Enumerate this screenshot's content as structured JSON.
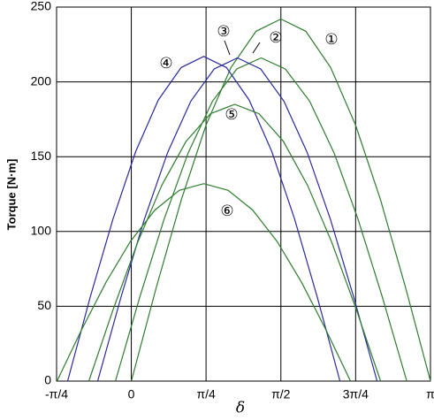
{
  "chart_data": {
    "type": "line",
    "x_label": "δ",
    "y_label": "Torque [N·m]",
    "xlim": [
      -0.785,
      3.142
    ],
    "ylim": [
      0,
      250
    ],
    "xticks": [
      {
        "value": -0.785,
        "label": "-π/4"
      },
      0,
      {
        "value": 0.785,
        "label": "π/4"
      },
      {
        "value": 1.571,
        "label": "π/2"
      },
      {
        "value": 2.356,
        "label": "3π/4"
      },
      {
        "value": 3.142,
        "label": "π"
      }
    ],
    "yticks": [
      0,
      50,
      100,
      150,
      200,
      250
    ],
    "grid": true,
    "series": [
      {
        "name": "①",
        "color": "#2e7d2e",
        "x": [
          0,
          0.262,
          0.524,
          0.785,
          1.047,
          1.309,
          1.571,
          1.833,
          2.094,
          2.356,
          2.618,
          2.88,
          3.142
        ],
        "values": [
          0,
          62.6,
          121,
          171.1,
          209.6,
          233.8,
          242,
          233.8,
          209.6,
          171.1,
          121,
          62.6,
          0
        ]
      },
      {
        "name": "②",
        "color": "#2e7d2e",
        "x": [
          -0.167,
          0.088,
          0.343,
          0.598,
          0.853,
          1.108,
          1.363,
          1.618,
          1.873,
          2.128,
          2.383,
          2.638,
          2.893
        ],
        "values": [
          0,
          55.9,
          108,
          152.7,
          187.1,
          208.6,
          216,
          208.6,
          187.1,
          152.7,
          108,
          55.9,
          0
        ]
      },
      {
        "name": "③",
        "color": "#2a2a9c",
        "x": [
          -0.353,
          -0.109,
          0.136,
          0.381,
          0.625,
          0.87,
          1.114,
          1.359,
          1.603,
          1.848,
          2.092,
          2.337,
          2.581
        ],
        "values": [
          0,
          55.9,
          108,
          152.7,
          187.1,
          208.6,
          216,
          208.6,
          187.1,
          152.7,
          108,
          55.9,
          0
        ]
      },
      {
        "name": "④",
        "color": "#2a2a9c",
        "x": [
          -0.669,
          -0.431,
          -0.192,
          0.046,
          0.284,
          0.523,
          0.761,
          0.999,
          1.238,
          1.476,
          1.714,
          1.953,
          2.191
        ],
        "values": [
          0,
          56.2,
          108.5,
          153.4,
          187.9,
          209.6,
          217,
          209.6,
          187.9,
          153.4,
          108.5,
          56.2,
          0
        ]
      },
      {
        "name": "⑤",
        "color": "#2e7d2e",
        "x": [
          -0.446,
          -0.191,
          0.065,
          0.32,
          0.575,
          0.831,
          1.086,
          1.341,
          1.597,
          1.852,
          2.107,
          2.363,
          2.618
        ],
        "values": [
          0,
          47.9,
          92.5,
          130.8,
          160.2,
          178.7,
          185,
          178.7,
          160.2,
          130.8,
          92.5,
          47.9,
          0
        ]
      },
      {
        "name": "⑥",
        "color": "#2e7d2e",
        "x": [
          -0.78,
          -0.523,
          -0.266,
          -0.01,
          0.247,
          0.504,
          0.761,
          1.018,
          1.275,
          1.531,
          1.788,
          2.045,
          2.302
        ],
        "values": [
          0,
          34.2,
          66,
          93.3,
          114.3,
          127.5,
          132,
          127.5,
          114.3,
          93.3,
          66,
          34.2,
          0
        ]
      }
    ]
  }
}
